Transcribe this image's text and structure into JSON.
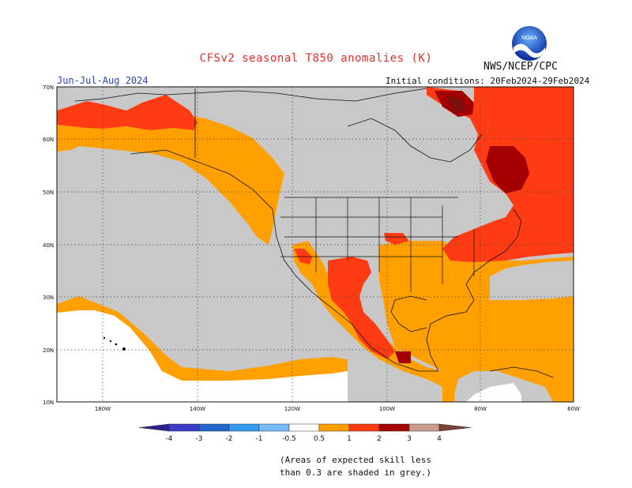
{
  "header": {
    "title": "CFSv2 seasonal T850 anomalies (K)",
    "agency": "NWS/NCEP/CPC",
    "season": "Jun-Jul-Aug 2024",
    "initial_conditions": "Initial conditions: 20Feb2024-29Feb2024",
    "logo_text": "NOAA"
  },
  "map": {
    "region": "North America and adjacent oceans",
    "lat_labels": [
      "70N",
      "60N",
      "50N",
      "40N",
      "30N",
      "20N",
      "10N"
    ],
    "lon_labels": [
      "180W",
      "140W",
      "120W",
      "100W",
      "80W",
      "60W"
    ],
    "grid": "dotted",
    "grey_meaning": "skill less than 0.3"
  },
  "colorbar": {
    "tick_labels": [
      "-4",
      "-3",
      "-2",
      "-1",
      "-0.5",
      "0.5",
      "1",
      "2",
      "3",
      "4"
    ],
    "bins": [
      {
        "range": "< -4",
        "color": "#2c1f8f"
      },
      {
        "range": "-4 to -3",
        "color": "#3b3bc8"
      },
      {
        "range": "-3 to -2",
        "color": "#2266cc"
      },
      {
        "range": "-2 to -1",
        "color": "#3399ee"
      },
      {
        "range": "-1 to -0.5",
        "color": "#77bbff"
      },
      {
        "range": "-0.5 to 0.5",
        "color": "#ffffff"
      },
      {
        "range": "0.5 to 1",
        "color": "#ffa000"
      },
      {
        "range": "1 to 2",
        "color": "#ff3b14"
      },
      {
        "range": "2 to 3",
        "color": "#a50000"
      },
      {
        "range": "3 to 4",
        "color": "#c89b8c"
      },
      {
        "range": "> 4",
        "color": "#7a4236"
      }
    ]
  },
  "colors": {
    "grey": "#c8c8c8",
    "orange": "#ffa000",
    "red": "#ff3b14",
    "darkred": "#a50000",
    "maroon": "#7a1010"
  },
  "footnote": "(Areas of expected skill less\nthan 0.3 are shaded in grey.)"
}
